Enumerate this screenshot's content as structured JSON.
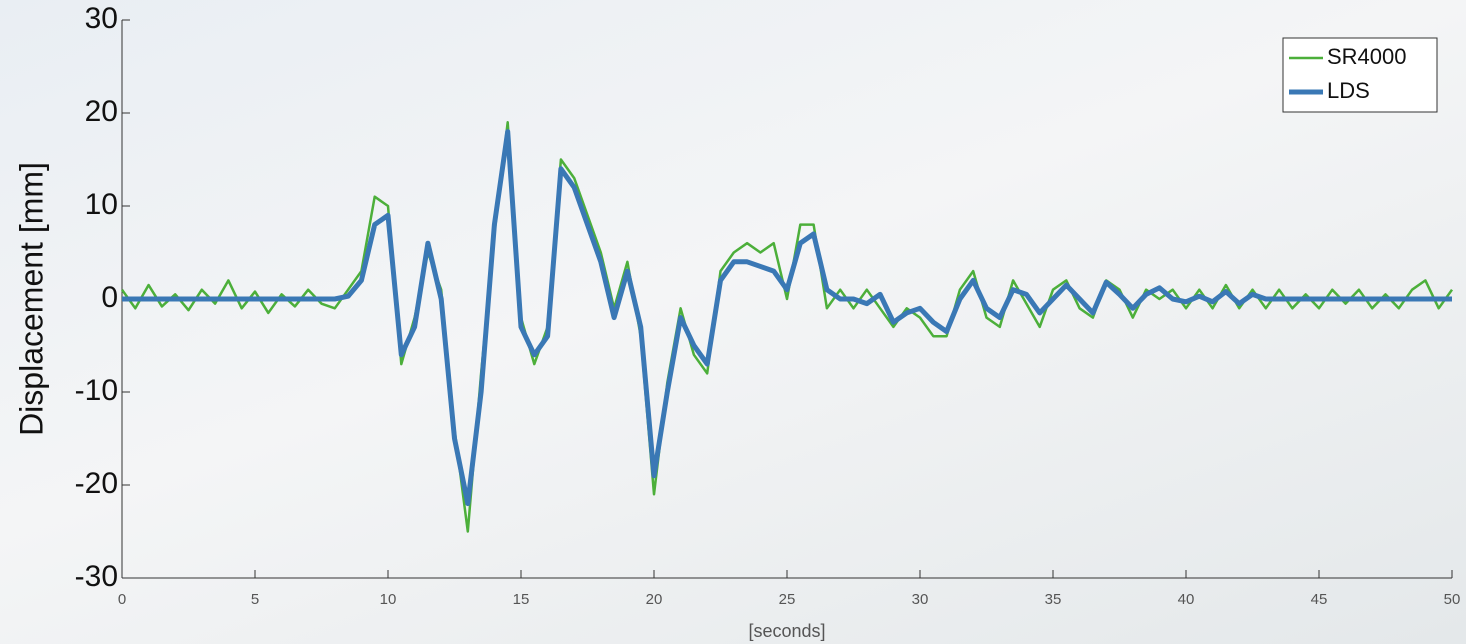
{
  "chart_data": {
    "type": "line",
    "ylabel": "Displacement [mm]",
    "xlabel": "[seconds]",
    "x": [
      0,
      0.5,
      1,
      1.5,
      2,
      2.5,
      3,
      3.5,
      4,
      4.5,
      5,
      5.5,
      6,
      6.5,
      7,
      7.5,
      8,
      8.5,
      9,
      9.5,
      10,
      10.5,
      11,
      11.5,
      12,
      12.5,
      13,
      13.5,
      14,
      14.5,
      15,
      15.5,
      16,
      16.5,
      17,
      17.5,
      18,
      18.5,
      19,
      19.5,
      20,
      20.5,
      21,
      21.5,
      22,
      22.5,
      23,
      23.5,
      24,
      24.5,
      25,
      25.5,
      26,
      26.5,
      27,
      27.5,
      28,
      28.5,
      29,
      29.5,
      30,
      30.5,
      31,
      31.5,
      32,
      32.5,
      33,
      33.5,
      34,
      34.5,
      35,
      35.5,
      36,
      36.5,
      37,
      37.5,
      38,
      38.5,
      39,
      39.5,
      40,
      40.5,
      41,
      41.5,
      42,
      42.5,
      43,
      43.5,
      44,
      44.5,
      45,
      45.5,
      46,
      46.5,
      47,
      47.5,
      48,
      48.5,
      49,
      49.5,
      50
    ],
    "series": [
      {
        "name": "SR4000",
        "color": "#4caf3a",
        "width": 2.5,
        "values": [
          1,
          -1,
          1.5,
          -0.8,
          0.5,
          -1.2,
          1,
          -0.5,
          2,
          -1,
          0.8,
          -1.5,
          0.5,
          -0.8,
          1,
          -0.5,
          -1,
          1,
          3,
          11,
          10,
          -7,
          -2,
          5,
          1,
          -14,
          -25,
          -8,
          7,
          19,
          -2,
          -7,
          -3,
          15,
          13,
          9,
          5,
          -1,
          4,
          -4,
          -21,
          -9,
          -1,
          -6,
          -8,
          3,
          5,
          6,
          5,
          6,
          0,
          8,
          8,
          -1,
          1,
          -1,
          1,
          -1,
          -3,
          -1,
          -2,
          -4,
          -4,
          1,
          3,
          -2,
          -3,
          2,
          -0.5,
          -3,
          1,
          2,
          -1,
          -2,
          2,
          1,
          -2,
          1,
          0,
          1,
          -1,
          1,
          -1,
          1.5,
          -1,
          1,
          -1,
          1,
          -1,
          0.5,
          -1,
          1,
          -0.5,
          1,
          -1,
          0.5,
          -1,
          1,
          2,
          -1,
          1
        ]
      },
      {
        "name": "LDS",
        "color": "#3a78b5",
        "width": 5,
        "values": [
          0,
          0,
          0,
          0,
          0,
          0,
          0,
          0,
          0,
          0,
          0,
          0,
          0,
          0,
          0,
          0,
          0,
          0.3,
          2,
          8,
          9,
          -6,
          -3,
          6,
          0,
          -15,
          -22,
          -10,
          8,
          18,
          -3,
          -6,
          -4,
          14,
          12,
          8,
          4,
          -2,
          3,
          -3,
          -19,
          -10,
          -2,
          -5,
          -7,
          2,
          4,
          4,
          3.5,
          3,
          1,
          6,
          7,
          1,
          0,
          0,
          -0.5,
          0.5,
          -2.5,
          -1.5,
          -1,
          -2.5,
          -3.5,
          0,
          2,
          -1,
          -2,
          1,
          0.5,
          -1.5,
          0,
          1.5,
          0,
          -1.5,
          1.8,
          0.5,
          -1,
          0.5,
          1.2,
          0,
          -0.3,
          0.3,
          -0.3,
          0.8,
          -0.5,
          0.5,
          0,
          0,
          0,
          0,
          0,
          0,
          0,
          0,
          0,
          0,
          0,
          0,
          0,
          0,
          0
        ]
      }
    ],
    "xlim": [
      0,
      50
    ],
    "xticks": [
      0,
      5,
      10,
      15,
      20,
      25,
      30,
      35,
      40,
      45,
      50
    ],
    "ylim": [
      -30,
      30
    ],
    "yticks": [
      -30,
      -20,
      -10,
      0,
      10,
      20,
      30
    ],
    "legend": "upper right"
  }
}
